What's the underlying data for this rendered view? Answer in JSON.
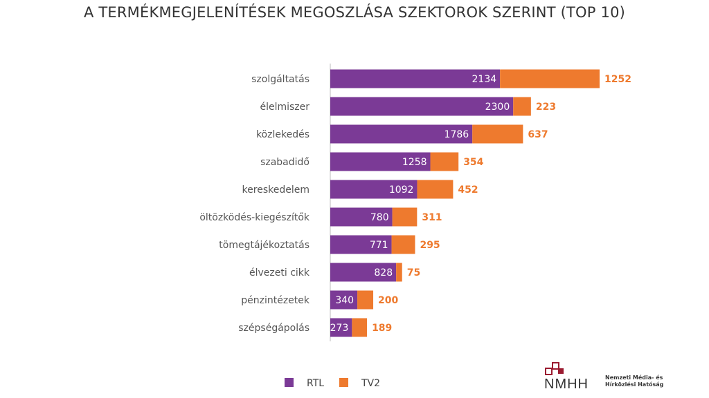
{
  "chart_data": {
    "type": "bar",
    "orientation": "horizontal",
    "stacked": true,
    "title": "A TERMÉKMEGJELENÍTÉSEK MEGOSZLÁSA SZEKTOROK SZERINT (TOP 10)",
    "categories": [
      "szolgáltatás",
      "élelmiszer",
      "közlekedés",
      "szabadidő",
      "kereskedelem",
      "öltözködés-kiegészítők",
      "tömegtájékoztatás",
      "élvezeti cikk",
      "pénzintézetek",
      "szépségápolás"
    ],
    "series": [
      {
        "name": "RTL",
        "color": "#7b3a96",
        "values": [
          2134,
          2300,
          1786,
          1258,
          1092,
          780,
          771,
          828,
          340,
          273
        ]
      },
      {
        "name": "TV2",
        "color": "#ee7a2e",
        "values": [
          1252,
          223,
          637,
          354,
          452,
          311,
          295,
          75,
          200,
          189
        ]
      }
    ],
    "xlim": [
      0,
      3386
    ],
    "grid": false,
    "legend_position": "bottom-left"
  },
  "logo": {
    "mark": "NMHH",
    "line1": "Nemzeti Média- és",
    "line2": "Hírközlési Hatóság"
  }
}
